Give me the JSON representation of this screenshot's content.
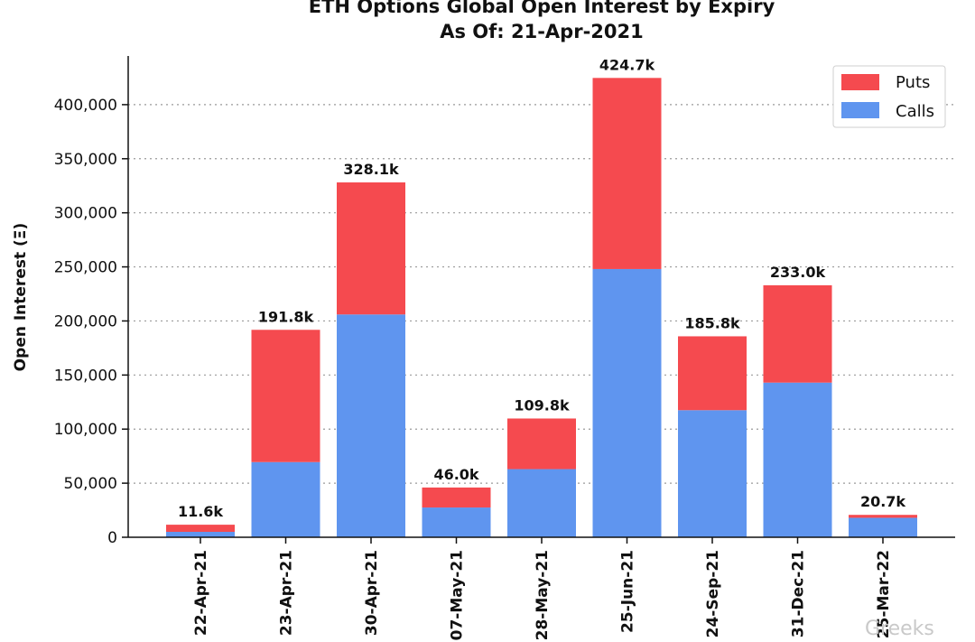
{
  "chart_data": {
    "type": "bar",
    "stacked": true,
    "title": "ETH Options Global Open Interest by Expiry",
    "subtitle": "As Of: 21-Apr-2021",
    "xlabel": "",
    "ylabel": "Open Interest (Ξ)",
    "ylim": [
      0,
      445000
    ],
    "yticks": [
      0,
      50000,
      100000,
      150000,
      200000,
      250000,
      300000,
      350000,
      400000
    ],
    "ytick_labels": [
      "0",
      "50,000",
      "100,000",
      "150,000",
      "200,000",
      "250,000",
      "300,000",
      "350,000",
      "400,000"
    ],
    "grid": "horizontal dotted",
    "legend_position": "top-right",
    "categories": [
      "22-Apr-21",
      "23-Apr-21",
      "30-Apr-21",
      "07-May-21",
      "28-May-21",
      "25-Jun-21",
      "24-Sep-21",
      "31-Dec-21",
      "25-Mar-22"
    ],
    "series": [
      {
        "name": "Calls",
        "color": "#5f95ef",
        "values": [
          5000,
          69500,
          206000,
          27500,
          63000,
          248000,
          117500,
          143000,
          18000
        ]
      },
      {
        "name": "Puts",
        "color": "#f54a4f",
        "values": [
          6600,
          122300,
          122100,
          18500,
          46800,
          176700,
          68300,
          90000,
          2700
        ]
      }
    ],
    "totals_labels": [
      "11.6k",
      "191.8k",
      "328.1k",
      "46.0k",
      "109.8k",
      "424.7k",
      "185.8k",
      "233.0k",
      "20.7k"
    ],
    "legend": [
      {
        "name": "Puts",
        "color": "#f54a4f"
      },
      {
        "name": "Calls",
        "color": "#5f95ef"
      }
    ]
  },
  "watermark": "Greeks"
}
